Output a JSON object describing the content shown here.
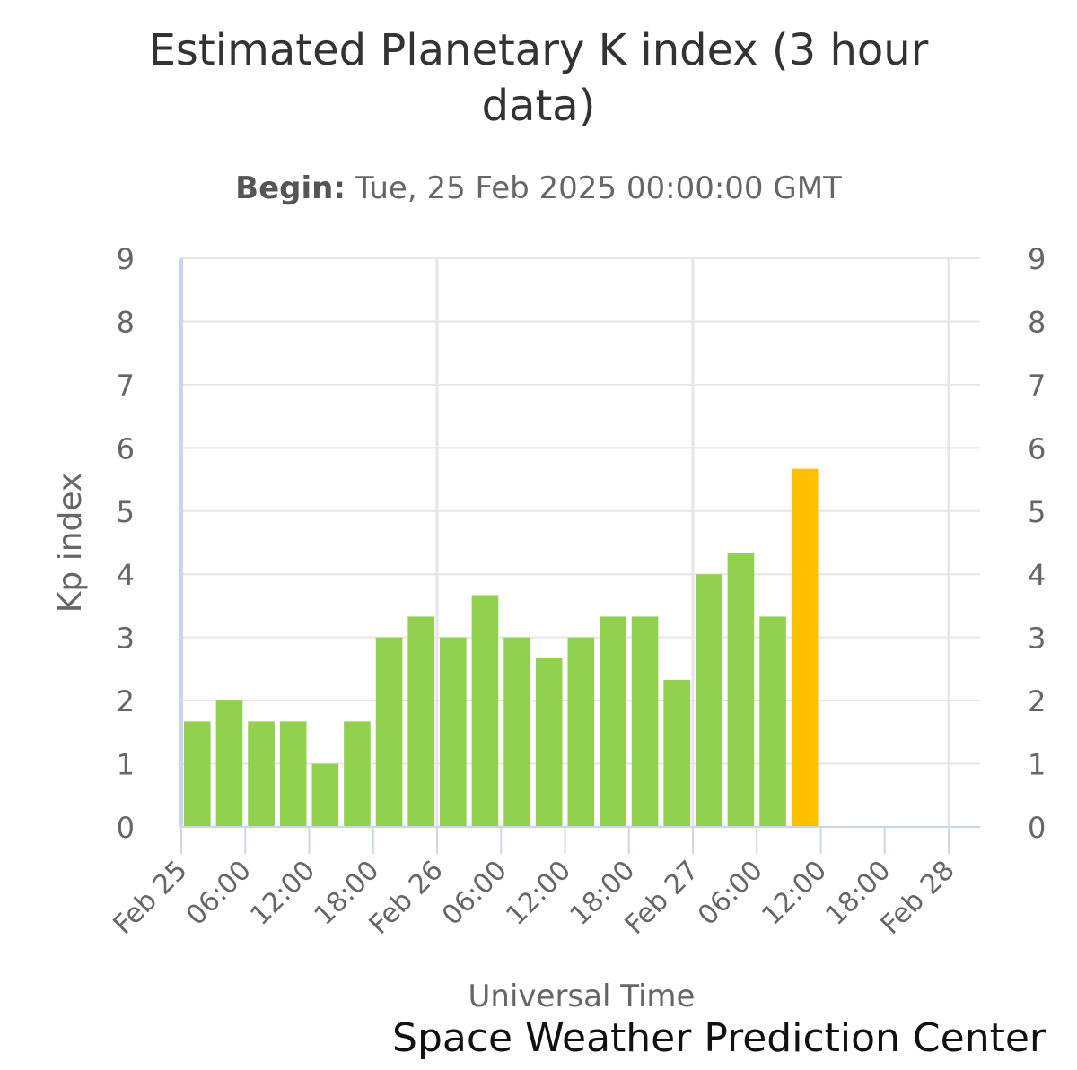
{
  "chart_data": {
    "type": "bar",
    "title": "Estimated Planetary K index (3 hour data)",
    "subtitle_label": "Begin:",
    "subtitle_value": "Tue, 25 Feb 2025 00:00:00 GMT",
    "xlabel": "Universal Time",
    "ylabel": "Kp index",
    "ylim": [
      0,
      9
    ],
    "yticks": [
      "0",
      "1",
      "2",
      "3",
      "4",
      "5",
      "6",
      "7",
      "8",
      "9"
    ],
    "x_range_hours": [
      0,
      75
    ],
    "xticks": [
      {
        "hour": 0,
        "label": "Feb 25"
      },
      {
        "hour": 6,
        "label": "06:00"
      },
      {
        "hour": 12,
        "label": "12:00"
      },
      {
        "hour": 18,
        "label": "18:00"
      },
      {
        "hour": 24,
        "label": "Feb 26"
      },
      {
        "hour": 30,
        "label": "06:00"
      },
      {
        "hour": 36,
        "label": "12:00"
      },
      {
        "hour": 42,
        "label": "18:00"
      },
      {
        "hour": 48,
        "label": "Feb 27"
      },
      {
        "hour": 54,
        "label": "06:00"
      },
      {
        "hour": 60,
        "label": "12:00"
      },
      {
        "hour": 66,
        "label": "18:00"
      },
      {
        "hour": 72,
        "label": "Feb 28"
      }
    ],
    "bar_width_hours": 3,
    "values": [
      1.67,
      2.0,
      1.67,
      1.67,
      1.0,
      1.67,
      3.0,
      3.33,
      3.0,
      3.67,
      3.0,
      2.67,
      3.0,
      3.33,
      3.33,
      2.33,
      4.0,
      4.33,
      3.33,
      5.67
    ],
    "colors": {
      "below_5": "#92d050",
      "kp5": "#ffc000",
      "grid": "#e6e6e6",
      "axis": "#ccd6eb"
    },
    "grid": true,
    "legend": "none"
  },
  "credit": "Space Weather Prediction Center"
}
